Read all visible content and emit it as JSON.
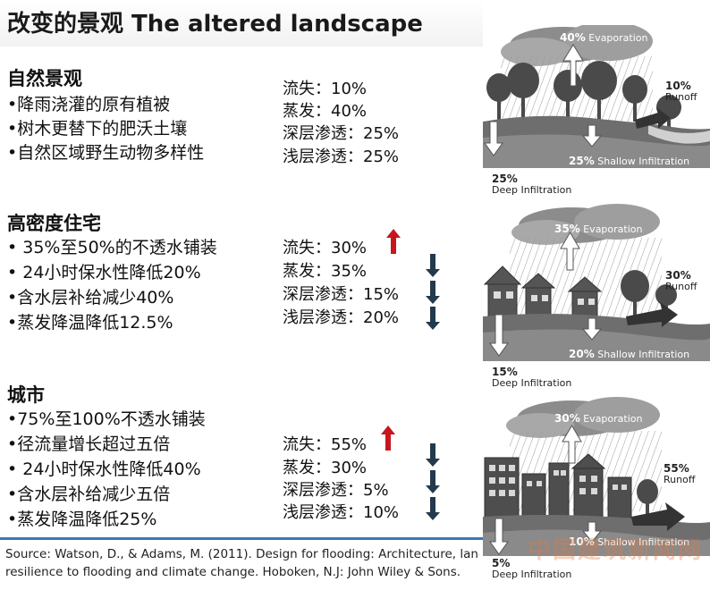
{
  "title": "改变的景观 The altered landscape",
  "sections": [
    {
      "title": "自然景观",
      "bullets": [
        "•降雨浇灌的原有植被",
        "•树木更替下的肥沃土壤",
        "•自然区域野生动物多样性"
      ],
      "stats": [
        "流失：10%",
        "蒸发：40%",
        "深层渗透：25%",
        "浅层渗透：25%"
      ]
    },
    {
      "title": "高密度住宅",
      "bullets": [
        "• 35%至50%的不透水铺装",
        "• 24小时保水性降低20%",
        "•含水层补给减少40%",
        "•蒸发降温降低12.5%"
      ],
      "stats": [
        "流失：30%",
        "蒸发：35%",
        "深层渗透：15%",
        "浅层渗透：20%"
      ],
      "trend": [
        "up",
        "down",
        "down",
        "down"
      ]
    },
    {
      "title": "城市",
      "bullets": [
        "•75%至100%不透水铺装",
        "•径流量增长超过五倍",
        "• 24小时保水性降低40%",
        "•含水层补给减少五倍",
        "•蒸发降温降低25%"
      ],
      "stats": [
        "流失：55%",
        "蒸发：30%",
        "深层渗透：5%",
        "浅层渗透：10%"
      ],
      "trend": [
        "up",
        "down",
        "down",
        "down"
      ]
    }
  ],
  "source": {
    "line1": "Source: Watson, D., & Adams, M. (2011). Design for flooding: Architecture, landscape, and urban design for",
    "line2": "resilience to flooding and climate change. Hoboken, N.J: John Wiley & Sons."
  },
  "panels": [
    {
      "evaporation": "40%",
      "evaporation_label": "Evaporation",
      "runoff": "10%",
      "runoff_label": "Runoff",
      "shallow": "25%",
      "shallow_label": "Shallow Infiltration",
      "deep": "25%",
      "deep_label": "Deep Infiltration"
    },
    {
      "evaporation": "35%",
      "evaporation_label": "Evaporation",
      "runoff": "30%",
      "runoff_label": "Runoff",
      "shallow": "20%",
      "shallow_label": "Shallow Infiltration",
      "deep": "15%",
      "deep_label": "Deep Infiltration"
    },
    {
      "evaporation": "30%",
      "evaporation_label": "Evaporation",
      "runoff": "55%",
      "runoff_label": "Runoff",
      "shallow": "10%",
      "shallow_label": "Shallow Infiltration",
      "deep": "5%",
      "deep_label": "Deep Infiltration"
    }
  ],
  "watermark": "中国建筑新闻网",
  "colors": {
    "up_arrow": "#c8161d",
    "down_arrow": "#23394d",
    "rule": "#3b78b7"
  }
}
